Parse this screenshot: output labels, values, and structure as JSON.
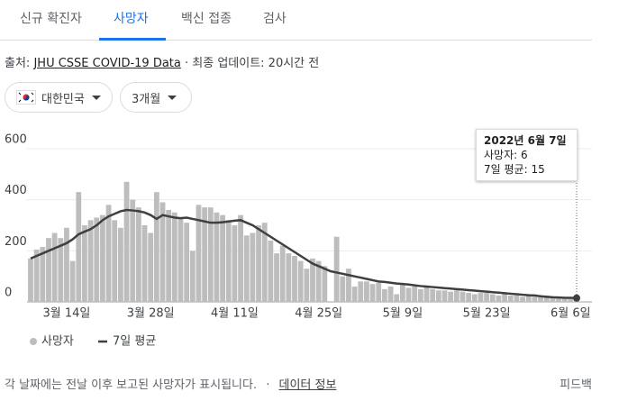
{
  "tabs": [
    "신규 확진자",
    "사망자",
    "백신 접종",
    "검사"
  ],
  "source": {
    "prefix": "출처:",
    "link": "JHU CSSE COVID-19 Data",
    "updated": "· 최종 업데이트: 20시간 전"
  },
  "filters": [
    "대한민국",
    "3개월"
  ],
  "chart_data": {
    "type": "combo",
    "categories": [
      null,
      null,
      null,
      null,
      null,
      null,
      "3월 14일",
      null,
      null,
      null,
      null,
      null,
      null,
      null,
      null,
      null,
      null,
      null,
      null,
      null,
      "3월 28일",
      null,
      null,
      null,
      null,
      null,
      null,
      null,
      null,
      null,
      null,
      null,
      null,
      null,
      "4월 11일",
      null,
      null,
      null,
      null,
      null,
      null,
      null,
      null,
      null,
      null,
      null,
      null,
      null,
      "4월 25일",
      null,
      null,
      null,
      null,
      null,
      null,
      null,
      null,
      null,
      null,
      null,
      null,
      null,
      "5월 9일",
      null,
      null,
      null,
      null,
      null,
      null,
      null,
      null,
      null,
      null,
      null,
      null,
      null,
      "5월 23일",
      null,
      null,
      null,
      null,
      null,
      null,
      null,
      null,
      null,
      null,
      null,
      null,
      null,
      "6월 6일",
      null
    ],
    "series": [
      {
        "name": "사망자",
        "kind": "bar",
        "color": "#bdbdbd",
        "values": [
          170,
          205,
          215,
          250,
          270,
          250,
          290,
          160,
          430,
          300,
          320,
          330,
          340,
          380,
          320,
          290,
          470,
          400,
          370,
          300,
          270,
          430,
          390,
          360,
          350,
          330,
          310,
          200,
          380,
          370,
          370,
          350,
          340,
          320,
          300,
          340,
          260,
          270,
          300,
          310,
          240,
          190,
          220,
          190,
          180,
          160,
          130,
          170,
          160,
          140,
          0,
          255,
          100,
          130,
          60,
          80,
          80,
          70,
          75,
          50,
          60,
          30,
          70,
          55,
          60,
          50,
          60,
          50,
          45,
          45,
          40,
          45,
          40,
          35,
          30,
          35,
          35,
          30,
          25,
          30,
          25,
          25,
          20,
          25,
          20,
          20,
          25,
          20,
          15,
          12,
          15,
          6
        ]
      },
      {
        "name": "7일 평균",
        "kind": "line",
        "color": "#3c4043",
        "values": [
          170,
          180,
          190,
          200,
          210,
          220,
          230,
          245,
          265,
          275,
          285,
          300,
          320,
          335,
          345,
          355,
          360,
          358,
          355,
          350,
          340,
          325,
          340,
          335,
          330,
          328,
          330,
          325,
          320,
          315,
          310,
          310,
          312,
          315,
          318,
          320,
          310,
          300,
          285,
          270,
          255,
          240,
          225,
          210,
          195,
          180,
          165,
          150,
          140,
          130,
          120,
          115,
          110,
          105,
          100,
          95,
          90,
          85,
          80,
          78,
          75,
          72,
          70,
          68,
          65,
          62,
          60,
          58,
          56,
          54,
          52,
          50,
          48,
          46,
          44,
          42,
          40,
          38,
          36,
          34,
          32,
          30,
          28,
          26,
          25,
          22,
          20,
          18,
          17,
          16,
          16,
          15
        ]
      }
    ],
    "ylim": [
      0,
      600
    ],
    "yticks": [
      0,
      200,
      400,
      600
    ],
    "grid": true,
    "tooltip": {
      "title": "2022년 6월 7일",
      "labels": [
        "사망자:",
        "7일 평균:"
      ]
    }
  },
  "footer": {
    "note": "각 날짜에는 전날 이후 보고된 사망자가 표시됩니다.",
    "separator": "·",
    "link": "데이터 정보",
    "feedback": "피드백"
  }
}
